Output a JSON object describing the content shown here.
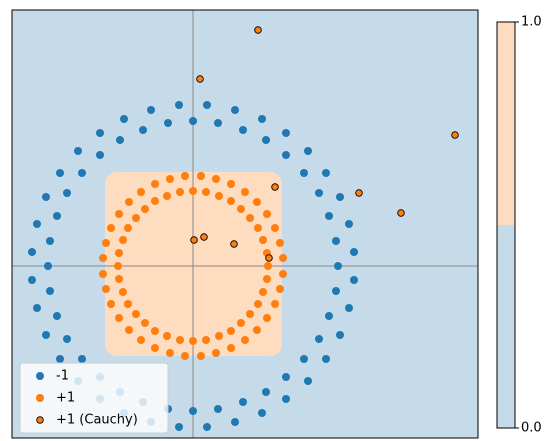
{
  "chart_data": {
    "type": "scatter",
    "xlim": [
      -1.81,
      2.85
    ],
    "ylim": [
      -1.72,
      2.56
    ],
    "background": "#c6dbea",
    "region": {
      "x": [
        -0.88,
        0.89
      ],
      "y": [
        -0.9,
        0.94
      ],
      "color": "#fedcc0"
    },
    "reference_lines": {
      "x": 0,
      "y": 0
    },
    "series": [
      {
        "name": "-1",
        "color": "#1f77b4",
        "x": [
          1.45,
          1.43,
          1.36,
          1.26,
          1.11,
          0.93,
          0.73,
          0.5,
          0.25,
          0,
          -0.25,
          -0.5,
          -0.73,
          -0.93,
          -1.11,
          -1.26,
          -1.36,
          -1.43,
          -1.45,
          -1.43,
          -1.36,
          -1.26,
          -1.11,
          -0.93,
          -0.73,
          -0.5,
          -0.25,
          0,
          0.25,
          0.5,
          0.73,
          0.93,
          1.11,
          1.26,
          1.36,
          1.43,
          1.61,
          1.56,
          1.47,
          1.33,
          1.15,
          0.93,
          0.69,
          0.42,
          0.14,
          -0.14,
          -0.42,
          -0.69,
          -0.93,
          -1.15,
          -1.33,
          -1.47,
          -1.56,
          -1.61,
          -1.61,
          -1.56,
          -1.47,
          -1.33,
          -1.15,
          -0.93,
          -0.69,
          -0.42,
          -0.14,
          0.14,
          0.42,
          0.69,
          0.93,
          1.15,
          1.33,
          1.47,
          1.56,
          1.61
        ],
        "y": [
          0,
          0.25,
          0.5,
          0.73,
          0.93,
          1.11,
          1.26,
          1.36,
          1.43,
          1.45,
          1.43,
          1.36,
          1.26,
          1.11,
          0.93,
          0.73,
          0.5,
          0.25,
          0,
          -0.25,
          -0.5,
          -0.73,
          -0.93,
          -1.11,
          -1.26,
          -1.36,
          -1.43,
          -1.45,
          -1.43,
          -1.36,
          -1.26,
          -1.11,
          -0.93,
          -0.73,
          -0.5,
          -0.25,
          0.14,
          0.42,
          0.69,
          0.93,
          1.15,
          1.33,
          1.47,
          1.56,
          1.61,
          1.61,
          1.56,
          1.47,
          1.33,
          1.15,
          0.93,
          0.69,
          0.42,
          0.14,
          -0.14,
          -0.42,
          -0.69,
          -0.93,
          -1.15,
          -1.33,
          -1.47,
          -1.56,
          -1.61,
          -1.61,
          -1.56,
          -1.47,
          -1.33,
          -1.15,
          -0.93,
          -0.69,
          -0.42,
          -0.14
        ]
      },
      {
        "name": "+1",
        "color": "#ff7f0e",
        "x": [
          0.75,
          0.74,
          0.7,
          0.65,
          0.57,
          0.48,
          0.38,
          0.26,
          0.13,
          0,
          -0.13,
          -0.26,
          -0.38,
          -0.48,
          -0.57,
          -0.65,
          -0.7,
          -0.74,
          -0.75,
          -0.74,
          -0.7,
          -0.65,
          -0.57,
          -0.48,
          -0.38,
          -0.26,
          -0.13,
          0,
          0.13,
          0.26,
          0.38,
          0.48,
          0.57,
          0.65,
          0.7,
          0.74,
          0.9,
          0.87,
          0.82,
          0.74,
          0.64,
          0.52,
          0.38,
          0.23,
          0.08,
          -0.08,
          -0.23,
          -0.38,
          -0.52,
          -0.64,
          -0.74,
          -0.82,
          -0.87,
          -0.9,
          -0.9,
          -0.87,
          -0.82,
          -0.74,
          -0.64,
          -0.52,
          -0.38,
          -0.23,
          -0.08,
          0.08,
          0.23,
          0.38,
          0.52,
          0.64,
          0.74,
          0.82,
          0.87,
          0.9
        ],
        "y": [
          0,
          0.13,
          0.26,
          0.38,
          0.48,
          0.57,
          0.65,
          0.7,
          0.74,
          0.75,
          0.74,
          0.7,
          0.65,
          0.57,
          0.48,
          0.38,
          0.26,
          0.13,
          0,
          -0.13,
          -0.26,
          -0.38,
          -0.48,
          -0.57,
          -0.65,
          -0.7,
          -0.74,
          -0.75,
          -0.74,
          -0.7,
          -0.65,
          -0.57,
          -0.48,
          -0.38,
          -0.26,
          -0.13,
          0.08,
          0.23,
          0.38,
          0.52,
          0.64,
          0.74,
          0.82,
          0.87,
          0.9,
          0.9,
          0.87,
          0.82,
          0.74,
          0.64,
          0.52,
          0.38,
          0.23,
          0.08,
          -0.08,
          -0.23,
          -0.38,
          -0.52,
          -0.64,
          -0.74,
          -0.82,
          -0.87,
          -0.9,
          -0.9,
          -0.87,
          -0.82,
          -0.74,
          -0.64,
          -0.52,
          -0.38,
          -0.23,
          -0.08
        ]
      },
      {
        "name": "+1 (Cauchy)",
        "color": "#ff7f0e",
        "edgecolor": "#000000",
        "x": [
          0.65,
          0.07,
          2.62,
          0.82,
          1.66,
          2.08,
          0.11,
          0.01,
          0.41,
          0.76
        ],
        "y": [
          2.36,
          1.87,
          1.31,
          0.79,
          0.73,
          0.53,
          0.29,
          0.26,
          0.22,
          0.08
        ]
      }
    ],
    "legend": "lower left",
    "colorbar": {
      "lim": [
        0,
        1
      ],
      "bounds": [
        0,
        0.5,
        1
      ],
      "colors": [
        "#c6dbea",
        "#fedcc0"
      ],
      "ticks": [
        {
          "value": 0,
          "label": "0.0"
        },
        {
          "value": 1,
          "label": "1.0"
        }
      ]
    }
  }
}
